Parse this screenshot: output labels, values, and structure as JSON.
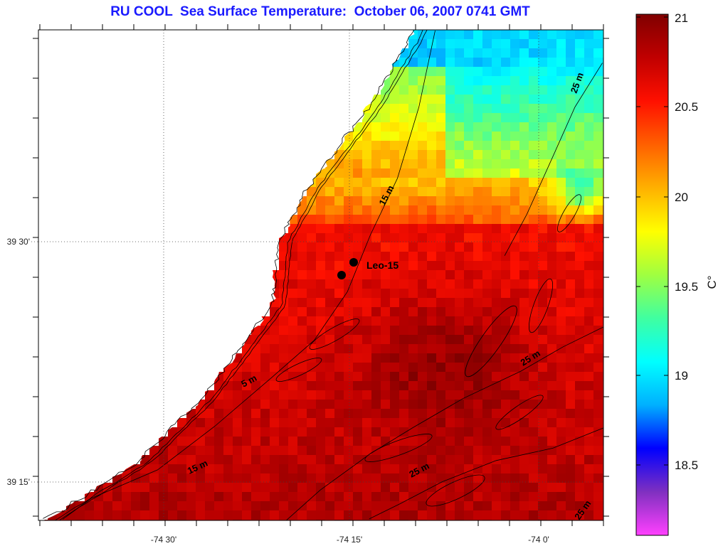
{
  "map": {
    "title": "RU COOL  Sea Surface Temperature:  October 06, 2007 0741 GMT",
    "lat_labels": [
      "39 30'",
      "39 15'"
    ],
    "lon_labels": [
      "-74 30'",
      "-74 15'",
      "-74 0'"
    ],
    "station": {
      "label": "Leo-15",
      "points": 2
    },
    "isobaths": [
      {
        "label": "5 m"
      },
      {
        "label": "15 m"
      },
      {
        "label": "15 m"
      },
      {
        "label": "25 m"
      },
      {
        "label": "25 m"
      },
      {
        "label": "25 m"
      },
      {
        "label": "25 m"
      }
    ],
    "colorbar": {
      "unit_label": "C°",
      "min": 18.1,
      "max": 21,
      "ticks": [
        "21",
        "20.5",
        "20",
        "19.5",
        "19",
        "18.5"
      ],
      "colors": [
        "#ff40ff",
        "#8030c0",
        "#0000ff",
        "#00b0ff",
        "#00ffff",
        "#40ffa0",
        "#a0ff40",
        "#ffff00",
        "#ffb000",
        "#ff6000",
        "#ff1000",
        "#c00000",
        "#800000"
      ]
    }
  }
}
